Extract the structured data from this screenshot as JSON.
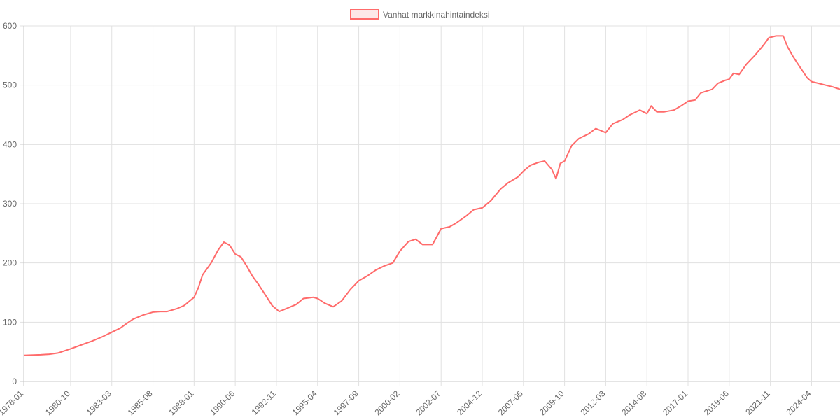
{
  "chart_data": {
    "type": "line",
    "legend_position": "top",
    "grid": true,
    "ylim": [
      0,
      600
    ],
    "y_ticks": [
      0,
      100,
      200,
      300,
      400,
      500,
      600
    ],
    "x_tick_labels": [
      "1978-01",
      "1980-10",
      "1983-03",
      "1985-08",
      "1988-01",
      "1990-06",
      "1992-11",
      "1995-04",
      "1997-09",
      "2000-02",
      "2002-07",
      "2004-12",
      "2007-05",
      "2009-10",
      "2012-03",
      "2014-08",
      "2017-01",
      "2019-06",
      "2021-11",
      "2024-04"
    ],
    "x_range": [
      "1978-01",
      "2025-12"
    ],
    "series": [
      {
        "name": "Vanhat markkinahintaindeksi",
        "color": "#ff6b6b",
        "fill": "#fde8e8",
        "points": [
          [
            "1978-01",
            44
          ],
          [
            "1979-01",
            45
          ],
          [
            "1979-07",
            46
          ],
          [
            "1980-01",
            48
          ],
          [
            "1980-10",
            55
          ],
          [
            "1981-06",
            62
          ],
          [
            "1982-01",
            68
          ],
          [
            "1982-08",
            75
          ],
          [
            "1983-03",
            83
          ],
          [
            "1983-09",
            90
          ],
          [
            "1984-01",
            97
          ],
          [
            "1984-06",
            105
          ],
          [
            "1985-01",
            112
          ],
          [
            "1985-08",
            117
          ],
          [
            "1986-01",
            118
          ],
          [
            "1986-06",
            118
          ],
          [
            "1987-01",
            123
          ],
          [
            "1987-06",
            128
          ],
          [
            "1988-01",
            142
          ],
          [
            "1988-04",
            158
          ],
          [
            "1988-07",
            180
          ],
          [
            "1989-01",
            200
          ],
          [
            "1989-06",
            222
          ],
          [
            "1989-10",
            235
          ],
          [
            "1990-02",
            230
          ],
          [
            "1990-06",
            215
          ],
          [
            "1990-10",
            210
          ],
          [
            "1991-02",
            195
          ],
          [
            "1991-06",
            178
          ],
          [
            "1991-10",
            165
          ],
          [
            "1992-04",
            143
          ],
          [
            "1992-08",
            128
          ],
          [
            "1993-01",
            118
          ],
          [
            "1993-06",
            123
          ],
          [
            "1994-01",
            130
          ],
          [
            "1994-06",
            140
          ],
          [
            "1995-01",
            142
          ],
          [
            "1995-04",
            140
          ],
          [
            "1995-09",
            132
          ],
          [
            "1996-03",
            126
          ],
          [
            "1996-09",
            136
          ],
          [
            "1997-03",
            155
          ],
          [
            "1997-09",
            170
          ],
          [
            "1998-03",
            178
          ],
          [
            "1998-09",
            188
          ],
          [
            "1999-03",
            195
          ],
          [
            "1999-09",
            200
          ],
          [
            "2000-02",
            220
          ],
          [
            "2000-08",
            236
          ],
          [
            "2001-01",
            240
          ],
          [
            "2001-06",
            231
          ],
          [
            "2002-01",
            231
          ],
          [
            "2002-07",
            258
          ],
          [
            "2003-01",
            261
          ],
          [
            "2003-06",
            268
          ],
          [
            "2004-01",
            280
          ],
          [
            "2004-06",
            290
          ],
          [
            "2004-12",
            293
          ],
          [
            "2005-06",
            305
          ],
          [
            "2006-01",
            325
          ],
          [
            "2006-06",
            335
          ],
          [
            "2007-01",
            345
          ],
          [
            "2007-05",
            355
          ],
          [
            "2007-10",
            365
          ],
          [
            "2008-04",
            370
          ],
          [
            "2008-08",
            372
          ],
          [
            "2009-01",
            358
          ],
          [
            "2009-04",
            342
          ],
          [
            "2009-07",
            368
          ],
          [
            "2009-10",
            372
          ],
          [
            "2010-03",
            398
          ],
          [
            "2010-08",
            410
          ],
          [
            "2011-03",
            418
          ],
          [
            "2011-08",
            427
          ],
          [
            "2012-03",
            420
          ],
          [
            "2012-08",
            435
          ],
          [
            "2013-03",
            442
          ],
          [
            "2013-08",
            450
          ],
          [
            "2014-03",
            458
          ],
          [
            "2014-08",
            452
          ],
          [
            "2014-11",
            465
          ],
          [
            "2015-03",
            455
          ],
          [
            "2015-08",
            455
          ],
          [
            "2016-03",
            458
          ],
          [
            "2016-08",
            465
          ],
          [
            "2017-01",
            473
          ],
          [
            "2017-06",
            475
          ],
          [
            "2017-10",
            487
          ],
          [
            "2018-06",
            493
          ],
          [
            "2018-10",
            503
          ],
          [
            "2019-03",
            508
          ],
          [
            "2019-06",
            510
          ],
          [
            "2019-09",
            520
          ],
          [
            "2020-01",
            518
          ],
          [
            "2020-06",
            535
          ],
          [
            "2020-12",
            550
          ],
          [
            "2021-06",
            567
          ],
          [
            "2021-10",
            580
          ],
          [
            "2022-03",
            583
          ],
          [
            "2022-08",
            583
          ],
          [
            "2022-11",
            565
          ],
          [
            "2023-03",
            548
          ],
          [
            "2023-08",
            530
          ],
          [
            "2024-01",
            512
          ],
          [
            "2024-04",
            506
          ],
          [
            "2024-09",
            503
          ],
          [
            "2025-02",
            500
          ],
          [
            "2025-07",
            497
          ],
          [
            "2025-12",
            493
          ]
        ]
      }
    ]
  }
}
